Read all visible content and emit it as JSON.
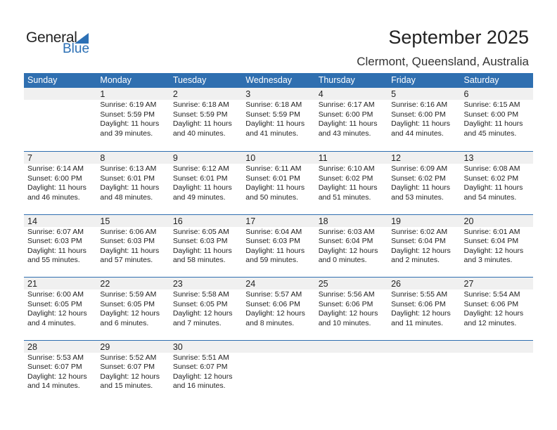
{
  "logo": {
    "general": "General",
    "blue": "Blue"
  },
  "header": {
    "title": "September 2025",
    "location": "Clermont, Queensland, Australia"
  },
  "weekdays": [
    "Sunday",
    "Monday",
    "Tuesday",
    "Wednesday",
    "Thursday",
    "Friday",
    "Saturday"
  ],
  "accent_color": "#2f6fb0",
  "weeks": [
    [
      null,
      {
        "day": "1",
        "sunrise": "Sunrise: 6:19 AM",
        "sunset": "Sunset: 5:59 PM",
        "daylight1": "Daylight: 11 hours",
        "daylight2": "and 39 minutes."
      },
      {
        "day": "2",
        "sunrise": "Sunrise: 6:18 AM",
        "sunset": "Sunset: 5:59 PM",
        "daylight1": "Daylight: 11 hours",
        "daylight2": "and 40 minutes."
      },
      {
        "day": "3",
        "sunrise": "Sunrise: 6:18 AM",
        "sunset": "Sunset: 5:59 PM",
        "daylight1": "Daylight: 11 hours",
        "daylight2": "and 41 minutes."
      },
      {
        "day": "4",
        "sunrise": "Sunrise: 6:17 AM",
        "sunset": "Sunset: 6:00 PM",
        "daylight1": "Daylight: 11 hours",
        "daylight2": "and 43 minutes."
      },
      {
        "day": "5",
        "sunrise": "Sunrise: 6:16 AM",
        "sunset": "Sunset: 6:00 PM",
        "daylight1": "Daylight: 11 hours",
        "daylight2": "and 44 minutes."
      },
      {
        "day": "6",
        "sunrise": "Sunrise: 6:15 AM",
        "sunset": "Sunset: 6:00 PM",
        "daylight1": "Daylight: 11 hours",
        "daylight2": "and 45 minutes."
      }
    ],
    [
      {
        "day": "7",
        "sunrise": "Sunrise: 6:14 AM",
        "sunset": "Sunset: 6:00 PM",
        "daylight1": "Daylight: 11 hours",
        "daylight2": "and 46 minutes."
      },
      {
        "day": "8",
        "sunrise": "Sunrise: 6:13 AM",
        "sunset": "Sunset: 6:01 PM",
        "daylight1": "Daylight: 11 hours",
        "daylight2": "and 48 minutes."
      },
      {
        "day": "9",
        "sunrise": "Sunrise: 6:12 AM",
        "sunset": "Sunset: 6:01 PM",
        "daylight1": "Daylight: 11 hours",
        "daylight2": "and 49 minutes."
      },
      {
        "day": "10",
        "sunrise": "Sunrise: 6:11 AM",
        "sunset": "Sunset: 6:01 PM",
        "daylight1": "Daylight: 11 hours",
        "daylight2": "and 50 minutes."
      },
      {
        "day": "11",
        "sunrise": "Sunrise: 6:10 AM",
        "sunset": "Sunset: 6:02 PM",
        "daylight1": "Daylight: 11 hours",
        "daylight2": "and 51 minutes."
      },
      {
        "day": "12",
        "sunrise": "Sunrise: 6:09 AM",
        "sunset": "Sunset: 6:02 PM",
        "daylight1": "Daylight: 11 hours",
        "daylight2": "and 53 minutes."
      },
      {
        "day": "13",
        "sunrise": "Sunrise: 6:08 AM",
        "sunset": "Sunset: 6:02 PM",
        "daylight1": "Daylight: 11 hours",
        "daylight2": "and 54 minutes."
      }
    ],
    [
      {
        "day": "14",
        "sunrise": "Sunrise: 6:07 AM",
        "sunset": "Sunset: 6:03 PM",
        "daylight1": "Daylight: 11 hours",
        "daylight2": "and 55 minutes."
      },
      {
        "day": "15",
        "sunrise": "Sunrise: 6:06 AM",
        "sunset": "Sunset: 6:03 PM",
        "daylight1": "Daylight: 11 hours",
        "daylight2": "and 57 minutes."
      },
      {
        "day": "16",
        "sunrise": "Sunrise: 6:05 AM",
        "sunset": "Sunset: 6:03 PM",
        "daylight1": "Daylight: 11 hours",
        "daylight2": "and 58 minutes."
      },
      {
        "day": "17",
        "sunrise": "Sunrise: 6:04 AM",
        "sunset": "Sunset: 6:03 PM",
        "daylight1": "Daylight: 11 hours",
        "daylight2": "and 59 minutes."
      },
      {
        "day": "18",
        "sunrise": "Sunrise: 6:03 AM",
        "sunset": "Sunset: 6:04 PM",
        "daylight1": "Daylight: 12 hours",
        "daylight2": "and 0 minutes."
      },
      {
        "day": "19",
        "sunrise": "Sunrise: 6:02 AM",
        "sunset": "Sunset: 6:04 PM",
        "daylight1": "Daylight: 12 hours",
        "daylight2": "and 2 minutes."
      },
      {
        "day": "20",
        "sunrise": "Sunrise: 6:01 AM",
        "sunset": "Sunset: 6:04 PM",
        "daylight1": "Daylight: 12 hours",
        "daylight2": "and 3 minutes."
      }
    ],
    [
      {
        "day": "21",
        "sunrise": "Sunrise: 6:00 AM",
        "sunset": "Sunset: 6:05 PM",
        "daylight1": "Daylight: 12 hours",
        "daylight2": "and 4 minutes."
      },
      {
        "day": "22",
        "sunrise": "Sunrise: 5:59 AM",
        "sunset": "Sunset: 6:05 PM",
        "daylight1": "Daylight: 12 hours",
        "daylight2": "and 6 minutes."
      },
      {
        "day": "23",
        "sunrise": "Sunrise: 5:58 AM",
        "sunset": "Sunset: 6:05 PM",
        "daylight1": "Daylight: 12 hours",
        "daylight2": "and 7 minutes."
      },
      {
        "day": "24",
        "sunrise": "Sunrise: 5:57 AM",
        "sunset": "Sunset: 6:06 PM",
        "daylight1": "Daylight: 12 hours",
        "daylight2": "and 8 minutes."
      },
      {
        "day": "25",
        "sunrise": "Sunrise: 5:56 AM",
        "sunset": "Sunset: 6:06 PM",
        "daylight1": "Daylight: 12 hours",
        "daylight2": "and 10 minutes."
      },
      {
        "day": "26",
        "sunrise": "Sunrise: 5:55 AM",
        "sunset": "Sunset: 6:06 PM",
        "daylight1": "Daylight: 12 hours",
        "daylight2": "and 11 minutes."
      },
      {
        "day": "27",
        "sunrise": "Sunrise: 5:54 AM",
        "sunset": "Sunset: 6:06 PM",
        "daylight1": "Daylight: 12 hours",
        "daylight2": "and 12 minutes."
      }
    ],
    [
      {
        "day": "28",
        "sunrise": "Sunrise: 5:53 AM",
        "sunset": "Sunset: 6:07 PM",
        "daylight1": "Daylight: 12 hours",
        "daylight2": "and 14 minutes."
      },
      {
        "day": "29",
        "sunrise": "Sunrise: 5:52 AM",
        "sunset": "Sunset: 6:07 PM",
        "daylight1": "Daylight: 12 hours",
        "daylight2": "and 15 minutes."
      },
      {
        "day": "30",
        "sunrise": "Sunrise: 5:51 AM",
        "sunset": "Sunset: 6:07 PM",
        "daylight1": "Daylight: 12 hours",
        "daylight2": "and 16 minutes."
      },
      null,
      null,
      null,
      null
    ]
  ]
}
